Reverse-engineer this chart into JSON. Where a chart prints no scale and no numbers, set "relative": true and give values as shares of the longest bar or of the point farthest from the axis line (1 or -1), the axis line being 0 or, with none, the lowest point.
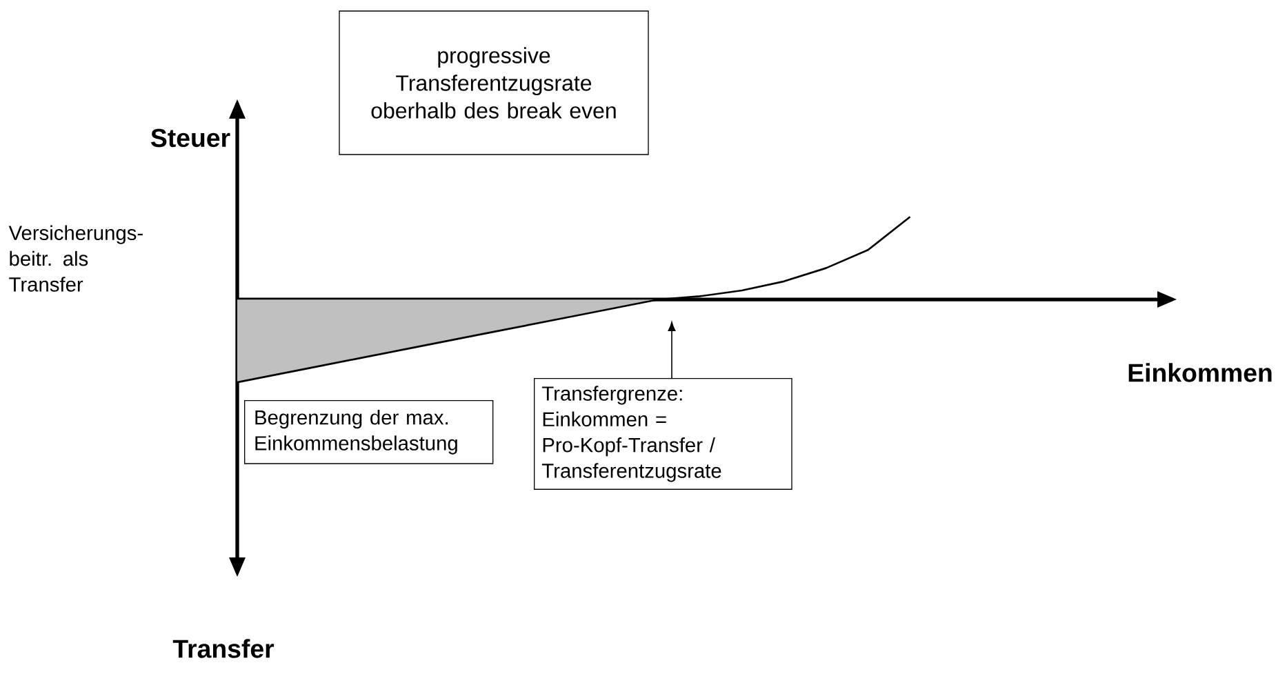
{
  "chart_data": {
    "type": "line",
    "relative": true,
    "categories": [
      null,
      null,
      null,
      null,
      null,
      null,
      null,
      null,
      null,
      null,
      null,
      null,
      null,
      null,
      null,
      null,
      null
    ],
    "ylabel": "Steuer",
    "series": [
      {
        "color": "#000000",
        "values": [
          -1,
          -0.9,
          -0.8,
          -0.7,
          -0.6,
          -0.5,
          -0.4,
          -0.3,
          -0.2,
          -0.1,
          0,
          0.04,
          0.11,
          0.22,
          0.38,
          0.6,
          1
        ],
        "lower": [
          -1,
          -0.9,
          -0.8,
          -0.7,
          -0.6,
          -0.5,
          -0.4,
          -0.3,
          -0.2,
          -0.1,
          0,
          null,
          null,
          null,
          null,
          null,
          null
        ],
        "upper": [
          0,
          0,
          0,
          0,
          0,
          0,
          0,
          0,
          0,
          0,
          0,
          null,
          null,
          null,
          null,
          null,
          null
        ]
      }
    ],
    "annotations": [
      "Transfer",
      "progressive Transferentzugsrate oberhalb des break even",
      "Versicherungs-beitr. als Transfer",
      "Begrenzung der max. Einkommensbelastung",
      "Transfergrenze: Einkommen = Pro-Kopf-Transfer / Transferentzugsrate",
      "Einkommen"
    ]
  }
}
